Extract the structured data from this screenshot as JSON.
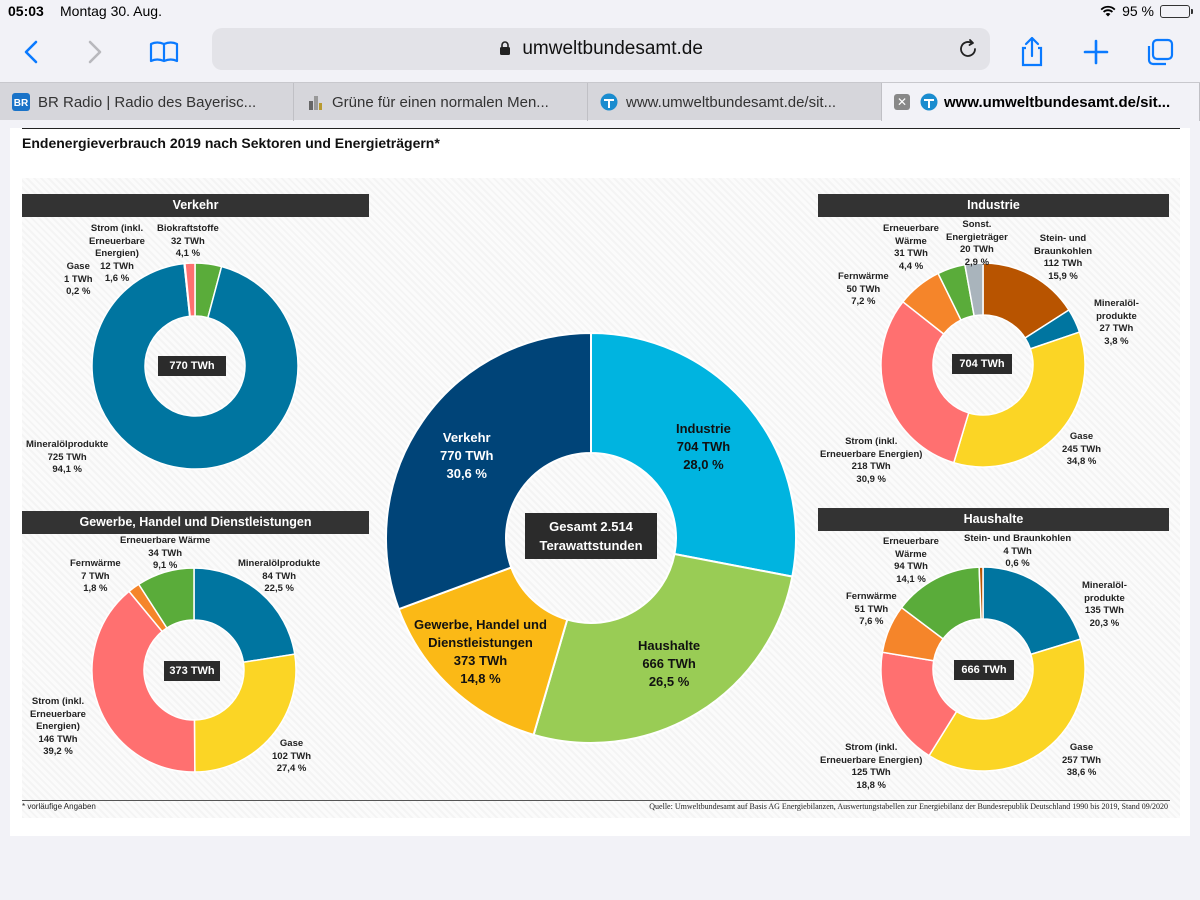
{
  "status": {
    "time": "05:03",
    "date": "Montag 30. Aug.",
    "battery": "95 %",
    "battery_level": 0.95
  },
  "toolbar": {
    "url": "umweltbundesamt.de"
  },
  "tabs": [
    {
      "title": "BR Radio | Radio des Bayerisc...",
      "icon": "br-icon"
    },
    {
      "title": "Grüne für einen normalen Men...",
      "icon": "page-icon"
    },
    {
      "title": "www.umweltbundesamt.de/sit...",
      "icon": "uba-icon"
    },
    {
      "title": "www.umweltbundesamt.de/sit...",
      "icon": "uba-icon",
      "active": true
    }
  ],
  "infographic": {
    "title": "Endenergieverbrauch 2019 nach Sektoren und Energieträgern*",
    "footnote": "* vorläufige Angaben",
    "source": "Quelle: Umweltbundesamt auf Basis AG Energiebilanzen, Auswertungstabellen zur Energiebilanz der Bundesrepublik Deutschland 1990 bis 2019, Stand 09/2020"
  },
  "chart_data": [
    {
      "type": "pie",
      "title": "Gesamt 2.514 Terawattstunden",
      "center": [
        "Gesamt 2.514",
        "Terawattstunden"
      ],
      "slices": [
        {
          "label": "Industrie",
          "twh": "704 TWh",
          "pct": "28,0 %",
          "value": 704,
          "color": "#00b4e0"
        },
        {
          "label": "Haushalte",
          "twh": "666 TWh",
          "pct": "26,5 %",
          "value": 666,
          "color": "#99cc55"
        },
        {
          "label": "Gewerbe, Handel und Dienstleistungen",
          "twh": "373 TWh",
          "pct": "14,8 %",
          "value": 373,
          "color": "#fbb916"
        },
        {
          "label": "Verkehr",
          "twh": "770 TWh",
          "pct": "30,6 %",
          "value": 770,
          "color": "#004478"
        }
      ]
    },
    {
      "type": "pie",
      "title": "Verkehr",
      "center": "770 TWh",
      "slices": [
        {
          "label": "Biokraftstoffe",
          "twh": "32 TWh",
          "pct": "4,1 %",
          "value": 32,
          "color": "#5aac3a"
        },
        {
          "label": "Mineralölprodukte",
          "twh": "725 TWh",
          "pct": "94,1 %",
          "value": 725,
          "color": "#0075a0"
        },
        {
          "label": "Gase",
          "twh": "1 TWh",
          "pct": "0,2 %",
          "value": 1,
          "color": "#fbd525"
        },
        {
          "label": "Strom (inkl. Erneuerbare Energien)",
          "twh": "12 TWh",
          "pct": "1,6 %",
          "value": 12,
          "color": "#ff7070"
        }
      ]
    },
    {
      "type": "pie",
      "title": "Industrie",
      "center": "704 TWh",
      "slices": [
        {
          "label": "Stein- und Braunkohlen",
          "twh": "112 TWh",
          "pct": "15,9 %",
          "value": 112,
          "color": "#b85400"
        },
        {
          "label": "Mineralölprodukte",
          "twh": "27 TWh",
          "pct": "3,8 %",
          "value": 27,
          "color": "#0075a0"
        },
        {
          "label": "Gase",
          "twh": "245 TWh",
          "pct": "34,8 %",
          "value": 245,
          "color": "#fbd525"
        },
        {
          "label": "Strom (inkl. Erneuerbare Energien)",
          "twh": "218 TWh",
          "pct": "30,9 %",
          "value": 218,
          "color": "#ff7070"
        },
        {
          "label": "Fernwärme",
          "twh": "50 TWh",
          "pct": "7,2 %",
          "value": 50,
          "color": "#f5852a"
        },
        {
          "label": "Erneuerbare Wärme",
          "twh": "31 TWh",
          "pct": "4,4 %",
          "value": 31,
          "color": "#5aac3a"
        },
        {
          "label": "Sonst. Energieträger",
          "twh": "20 TWh",
          "pct": "2,9 %",
          "value": 20,
          "color": "#a9b4bc"
        }
      ]
    },
    {
      "type": "pie",
      "title": "Gewerbe, Handel und Dienstleistungen",
      "center": "373 TWh",
      "slices": [
        {
          "label": "Mineralölprodukte",
          "twh": "84 TWh",
          "pct": "22,5 %",
          "value": 84,
          "color": "#0075a0"
        },
        {
          "label": "Gase",
          "twh": "102 TWh",
          "pct": "27,4 %",
          "value": 102,
          "color": "#fbd525"
        },
        {
          "label": "Strom (inkl. Erneuerbare Energien)",
          "twh": "146 TWh",
          "pct": "39,2 %",
          "value": 146,
          "color": "#ff7070"
        },
        {
          "label": "Fernwärme",
          "twh": "7 TWh",
          "pct": "1,8 %",
          "value": 7,
          "color": "#f5852a"
        },
        {
          "label": "Erneuerbare Wärme",
          "twh": "34 TWh",
          "pct": "9,1 %",
          "value": 34,
          "color": "#5aac3a"
        }
      ]
    },
    {
      "type": "pie",
      "title": "Haushalte",
      "center": "666 TWh",
      "slices": [
        {
          "label": "Mineralölprodukte",
          "twh": "135 TWh",
          "pct": "20,3 %",
          "value": 135,
          "color": "#0075a0"
        },
        {
          "label": "Gase",
          "twh": "257 TWh",
          "pct": "38,6 %",
          "value": 257,
          "color": "#fbd525"
        },
        {
          "label": "Strom (inkl. Erneuerbare Energien)",
          "twh": "125 TWh",
          "pct": "18,8 %",
          "value": 125,
          "color": "#ff7070"
        },
        {
          "label": "Fernwärme",
          "twh": "51 TWh",
          "pct": "7,6 %",
          "value": 51,
          "color": "#f5852a"
        },
        {
          "label": "Erneuerbare Wärme",
          "twh": "94 TWh",
          "pct": "14,1 %",
          "value": 94,
          "color": "#5aac3a"
        },
        {
          "label": "Stein- und Braunkohlen",
          "twh": "4 TWh",
          "pct": "0,6 %",
          "value": 4,
          "color": "#b85400"
        }
      ]
    }
  ]
}
